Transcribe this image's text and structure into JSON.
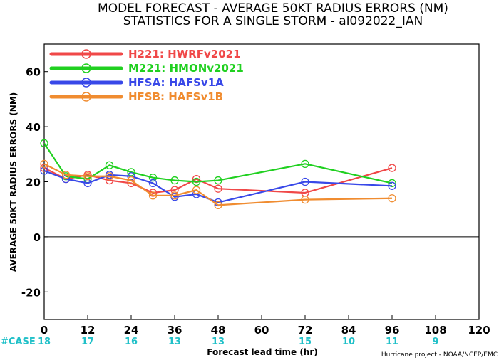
{
  "chart_data": {
    "type": "line",
    "title": "MODEL FORECAST - AVERAGE 50KT RADIUS ERRORS (NM)",
    "subtitle": "STATISTICS FOR A SINGLE STORM - al092022_IAN",
    "xlabel": "Forecast lead time (hr)",
    "ylabel": "AVERAGE 50KT RADIUS ERRORS (NM)",
    "xlim": [
      0,
      120
    ],
    "ylim": [
      -30,
      70
    ],
    "xticks": [
      0,
      12,
      24,
      36,
      48,
      60,
      72,
      84,
      96,
      108,
      120
    ],
    "yticks": [
      -20,
      0,
      20,
      40,
      60
    ],
    "zero_line": true,
    "legend_position": "top-left",
    "series": [
      {
        "name": "H221: HWRFv2021",
        "color": "#f04848",
        "x": [
          0,
          6,
          12,
          18,
          24,
          30,
          36,
          42,
          48,
          72,
          96
        ],
        "y": [
          25,
          21,
          22.5,
          20.5,
          19.5,
          16,
          17,
          21,
          17.5,
          16,
          25
        ]
      },
      {
        "name": "M221: HMONv2021",
        "color": "#20d020",
        "x": [
          0,
          6,
          12,
          18,
          24,
          30,
          36,
          42,
          48,
          72,
          96
        ],
        "y": [
          34,
          22,
          21,
          26,
          23.5,
          21.5,
          20.5,
          20,
          20.5,
          26.5,
          19.5
        ]
      },
      {
        "name": "HFSA: HAFSv1A",
        "color": "#3848e8",
        "x": [
          0,
          6,
          12,
          18,
          24,
          30,
          36,
          42,
          48,
          72,
          96
        ],
        "y": [
          24,
          21,
          19.5,
          22.5,
          22,
          19.5,
          14.5,
          15.5,
          12.5,
          20,
          18.5
        ]
      },
      {
        "name": "HFSB: HAFSv1B",
        "color": "#f08c30",
        "x": [
          0,
          6,
          12,
          18,
          24,
          30,
          36,
          42,
          48,
          72,
          96
        ],
        "y": [
          26.5,
          22.5,
          22,
          22,
          20.5,
          15,
          15,
          17,
          11.5,
          13.5,
          14
        ]
      }
    ],
    "case_label": "#CASE",
    "case_counts": [
      {
        "x": 0,
        "n": "18"
      },
      {
        "x": 12,
        "n": "17"
      },
      {
        "x": 24,
        "n": "16"
      },
      {
        "x": 36,
        "n": "13"
      },
      {
        "x": 48,
        "n": "13"
      },
      {
        "x": 72,
        "n": "15"
      },
      {
        "x": 84,
        "n": "10"
      },
      {
        "x": 96,
        "n": "11"
      },
      {
        "x": 108,
        "n": "9"
      }
    ],
    "credit": "Hurricane project - NOAA/NCEP/EMC"
  }
}
